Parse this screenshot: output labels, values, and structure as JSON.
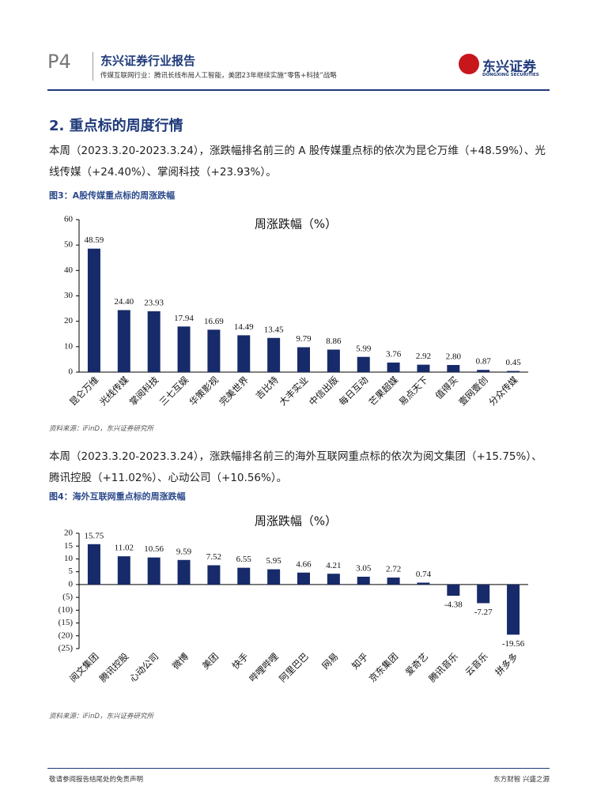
{
  "header": {
    "page": "P4",
    "brand": "东兴证券行业报告",
    "subtitle": "传媒互联网行业：腾讯长线布局人工智能，美团23年继续实施“零售+科技”战略",
    "logo": "东兴证券",
    "logo_en": "DONGXING SECURITIES"
  },
  "section_title": "2. 重点标的周度行情",
  "paragraphs": [
    "本周（2023.3.20-2023.3.24），涨跌幅排名前三的 A 股传媒重点标的依次为昆仑万维（+48.59%）、光线传媒（+24.40%）、掌阅科技（+23.93%）。",
    "本周（2023.3.20-2023.3.24），涨跌幅排名前三的海外互联网重点标的依次为阅文集团（+15.75%）、腾讯控股（+11.02%）、心动公司（+10.56%）。"
  ],
  "figures": [
    {
      "caption": "图3：A股传媒重点标的周涨跌幅",
      "source": "资料来源：iFinD，东兴证券研究所"
    },
    {
      "caption": "图4：海外互联网重点标的周涨跌幅",
      "source": "资料来源：iFinD，东兴证券研究所"
    }
  ],
  "footer": {
    "left": "敬请参阅报告结尾处的免责声明",
    "right": "东方财智 兴盛之源"
  },
  "chart_data": [
    {
      "type": "bar",
      "title": "周涨跌幅（%）",
      "color": "#172a69",
      "categories": [
        "昆仑万维",
        "光线传媒",
        "掌阅科技",
        "三七互娱",
        "华策影视",
        "完美世界",
        "吉比特",
        "大丰实业",
        "中信出版",
        "每日互动",
        "芒果超媒",
        "易点天下",
        "值得买",
        "壹网壹创",
        "分众传媒"
      ],
      "values": [
        48.59,
        24.4,
        23.93,
        17.94,
        16.69,
        14.49,
        13.45,
        9.79,
        8.86,
        5.99,
        3.76,
        2.92,
        2.8,
        0.87,
        0.45
      ],
      "value_labels": [
        "48.59",
        "24.40",
        "23.93",
        "17.94",
        "16.69",
        "14.49",
        "13.45",
        "9.79",
        "8.86",
        "5.99",
        "3.76",
        "2.92",
        "2.80",
        "0.87",
        "0.45"
      ],
      "ylim": [
        0,
        60
      ],
      "yticks": [
        0,
        10,
        20,
        30,
        40,
        50,
        60
      ]
    },
    {
      "type": "bar",
      "title": "周涨跌幅（%）",
      "color": "#172a69",
      "categories": [
        "阅文集团",
        "腾讯控股",
        "心动公司",
        "微博",
        "美团",
        "快手",
        "哔哩哔哩",
        "阿里巴巴",
        "网易",
        "知乎",
        "京东集团",
        "爱奇艺",
        "腾讯音乐",
        "云音乐",
        "拼多多"
      ],
      "values": [
        15.75,
        11.02,
        10.56,
        9.59,
        7.52,
        6.55,
        5.95,
        4.66,
        4.21,
        3.05,
        2.72,
        0.74,
        -4.38,
        -7.27,
        -19.56
      ],
      "ylim": [
        -25,
        20
      ],
      "yticks": [
        20,
        15,
        10,
        5,
        0,
        {
          "value": -5,
          "label": "(5)"
        },
        {
          "value": -10,
          "label": "(10)"
        },
        {
          "value": -15,
          "label": "(15)"
        },
        {
          "value": -20,
          "label": "(20)"
        },
        {
          "value": -25,
          "label": "(25)"
        }
      ]
    }
  ]
}
